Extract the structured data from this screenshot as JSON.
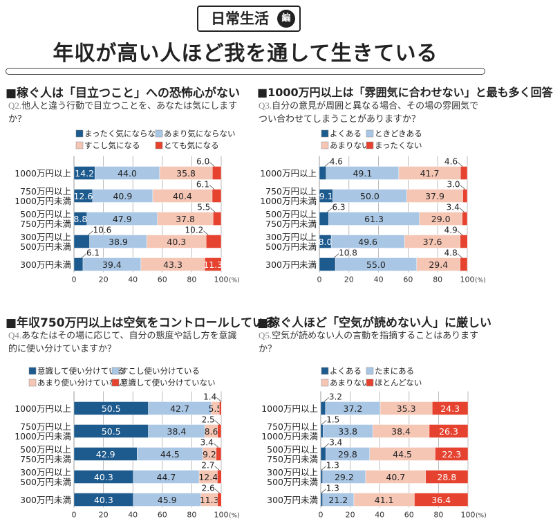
{
  "header": {
    "badge": "日常生活",
    "badge_suffix": "編",
    "title": "年収が高い人ほど我を通して生きている"
  },
  "colors": {
    "dark_blue": "#1d5a8e",
    "light_blue": "#a9c7e5",
    "pink": "#f6c6b5",
    "red": "#e5432f",
    "grid": "#aaaaaa"
  },
  "sections": [
    {
      "heading": "■稼ぐ人は「目立つこと」への恐怖心がない",
      "q_no": "Q2.",
      "question": "他人と違う行動で目立つことを、あなたは気にしますか？"
    },
    {
      "heading": "■1000万円以上は「雰囲気に合わせない」と最も多く回答",
      "q_no": "Q3.",
      "question": "自分の意見が周囲と異なる場合、その場の雰囲気でつい合わせてしまうことがありますか？"
    },
    {
      "heading": "■年収750万円以上は空気をコントロールしている",
      "q_no": "Q4.",
      "question": "あなたはその場に応じて、自分の態度や話し方を意識的に使い分けていますか？"
    },
    {
      "heading": "■稼ぐ人ほど「空気が読めない人」に厳しい",
      "q_no": "Q5.",
      "question": "空気が読めない人の言動を指摘することはありますか？"
    }
  ],
  "chart_data": [
    {
      "type": "bar",
      "stacked": true,
      "orientation": "horizontal",
      "categories": [
        "1000万円以上",
        "750万円以上\n1000万円未満",
        "500万円以上\n750万円未満",
        "300万円以上\n500万円未満",
        "300万円未満"
      ],
      "series": [
        {
          "name": "まったく気にならない",
          "values": [
            14.2,
            12.6,
            8.8,
            10.6,
            6.1
          ]
        },
        {
          "name": "あまり気にならない",
          "values": [
            44.0,
            40.9,
            47.9,
            38.9,
            39.4
          ]
        },
        {
          "name": "すこし気になる",
          "values": [
            35.8,
            40.4,
            37.8,
            40.3,
            43.3
          ]
        },
        {
          "name": "とても気になる",
          "values": [
            6.0,
            6.1,
            5.5,
            10.2,
            11.3
          ]
        }
      ],
      "xlim": [
        0,
        100
      ],
      "xticks": [
        "0",
        "20",
        "40",
        "60",
        "80",
        "100"
      ],
      "unit": "(%)",
      "grid": true,
      "legend": "top"
    },
    {
      "type": "bar",
      "stacked": true,
      "orientation": "horizontal",
      "categories": [
        "1000万円以上",
        "750万円以上\n1000万円未満",
        "500万円以上\n750万円未満",
        "300万円以上\n500万円未満",
        "300万円未満"
      ],
      "series": [
        {
          "name": "よくある",
          "values": [
            4.6,
            9.1,
            6.3,
            8.0,
            10.8
          ]
        },
        {
          "name": "ときどきある",
          "values": [
            49.1,
            50.0,
            61.3,
            49.6,
            55.0
          ]
        },
        {
          "name": "あまりない",
          "values": [
            41.7,
            37.9,
            29.0,
            37.6,
            29.4
          ]
        },
        {
          "name": "まったくない",
          "values": [
            4.6,
            3.0,
            3.4,
            4.9,
            4.8
          ]
        }
      ],
      "xlim": [
        0,
        100
      ],
      "xticks": [
        "0",
        "20",
        "40",
        "60",
        "80",
        "100"
      ],
      "unit": "(%)",
      "grid": true,
      "legend": "top"
    },
    {
      "type": "bar",
      "stacked": true,
      "orientation": "horizontal",
      "categories": [
        "1000万円以上",
        "750万円以上\n1000万円未満",
        "500万円以上\n750万円未満",
        "300万円以上\n500万円未満",
        "300万円未満"
      ],
      "series": [
        {
          "name": "意識して使い分けている",
          "values": [
            50.5,
            50.5,
            42.9,
            40.3,
            40.3
          ]
        },
        {
          "name": "すこし使い分けている",
          "values": [
            42.7,
            38.4,
            44.5,
            44.7,
            45.9
          ]
        },
        {
          "name": "あまり使い分けていない",
          "values": [
            5.5,
            8.6,
            9.2,
            12.4,
            11.3
          ]
        },
        {
          "name": "意識して使い分けていない",
          "values": [
            1.4,
            2.5,
            3.4,
            2.7,
            2.6
          ]
        }
      ],
      "xlim": [
        0,
        100
      ],
      "xticks": [
        "0",
        "20",
        "40",
        "60",
        "80",
        "100"
      ],
      "unit": "(%)",
      "grid": true,
      "legend": "top"
    },
    {
      "type": "bar",
      "stacked": true,
      "orientation": "horizontal",
      "categories": [
        "1000万円以上",
        "750万円以上\n1000万円未満",
        "500万円以上\n750万円未満",
        "300万円以上\n500万円未満",
        "300万円未満"
      ],
      "series": [
        {
          "name": "よくある",
          "values": [
            3.2,
            1.5,
            3.4,
            1.3,
            1.3
          ]
        },
        {
          "name": "たまにある",
          "values": [
            37.2,
            33.8,
            29.8,
            29.2,
            21.2
          ]
        },
        {
          "name": "あまりない",
          "values": [
            35.3,
            38.4,
            44.5,
            40.7,
            41.1
          ]
        },
        {
          "name": "ほとんどない",
          "values": [
            24.3,
            26.3,
            22.3,
            28.8,
            36.4
          ]
        }
      ],
      "xlim": [
        0,
        100
      ],
      "xticks": [
        "0",
        "20",
        "40",
        "60",
        "80",
        "100"
      ],
      "unit": "(%)",
      "grid": true,
      "legend": "top"
    }
  ]
}
